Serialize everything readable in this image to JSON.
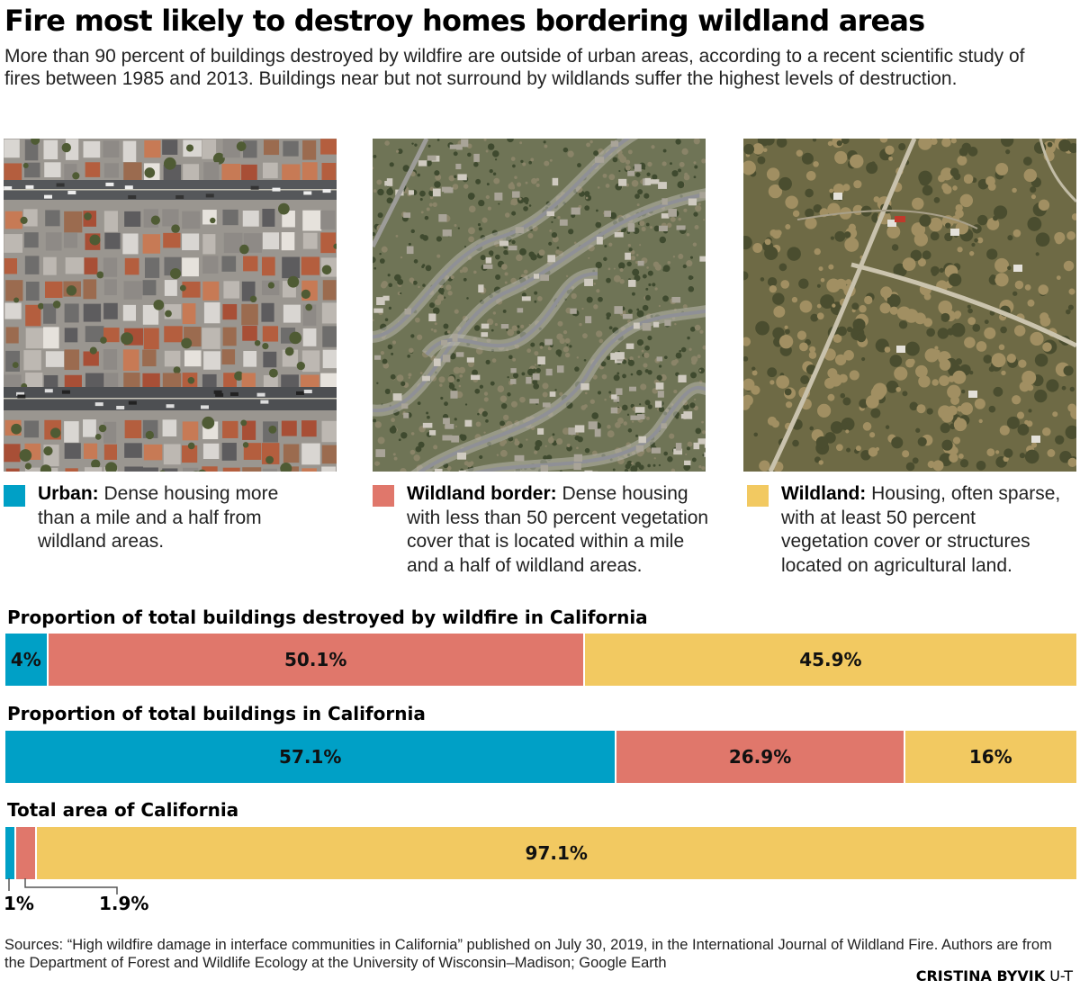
{
  "header": {
    "title": "Fire most likely to destroy homes bordering wildland areas",
    "subtitle": "More than 90 percent of buildings destroyed by wildfire are outside of urban areas, according to a recent scientific study of fires between 1985 and 2013. Buildings near but not surround by wildlands suffer the highest levels of destruction."
  },
  "colors": {
    "urban": "#00a0c6",
    "border": "#e0776b",
    "wildland": "#f2c961"
  },
  "legend": [
    {
      "key": "urban",
      "label": "Urban:",
      "text": " Dense housing more than a mile and a half from wildland areas."
    },
    {
      "key": "border",
      "label": "Wildland border:",
      "text": " Dense housing with less than 50 percent vegetation cover that is located within a mile and a half of wildland areas."
    },
    {
      "key": "wildland",
      "label": "Wildland:",
      "text": " Housing, often sparse, with at least 50 percent vegetation cover or structures located on agricultural land."
    }
  ],
  "chart_data": {
    "type": "bar",
    "orientation": "horizontal",
    "stacked": true,
    "categories": [
      "Urban",
      "Wildland border",
      "Wildland"
    ],
    "bars": [
      {
        "title": "Proportion of total buildings destroyed by wildfire in California",
        "values": [
          4,
          50.1,
          45.9
        ],
        "labels": [
          "4%",
          "50.1%",
          "45.9%"
        ]
      },
      {
        "title": "Proportion of total buildings in California",
        "values": [
          57.1,
          26.9,
          16
        ],
        "labels": [
          "57.1%",
          "26.9%",
          "16%"
        ]
      },
      {
        "title": "Total area of California",
        "values": [
          1,
          1.9,
          97.1
        ],
        "labels": [
          "",
          "",
          "97.1%"
        ]
      }
    ],
    "callouts": [
      "1%",
      "1.9%"
    ]
  },
  "footer": {
    "sources": "Sources: “High wildfire damage in interface communities in California” published on July 30, 2019, in the International Journal of Wildland Fire. Authors are from the Department of Forest and Wildlife Ecology at the University of Wisconsin–Madison; Google Earth",
    "credit_name": "CRISTINA BYVIK",
    "credit_org": "U-T"
  }
}
